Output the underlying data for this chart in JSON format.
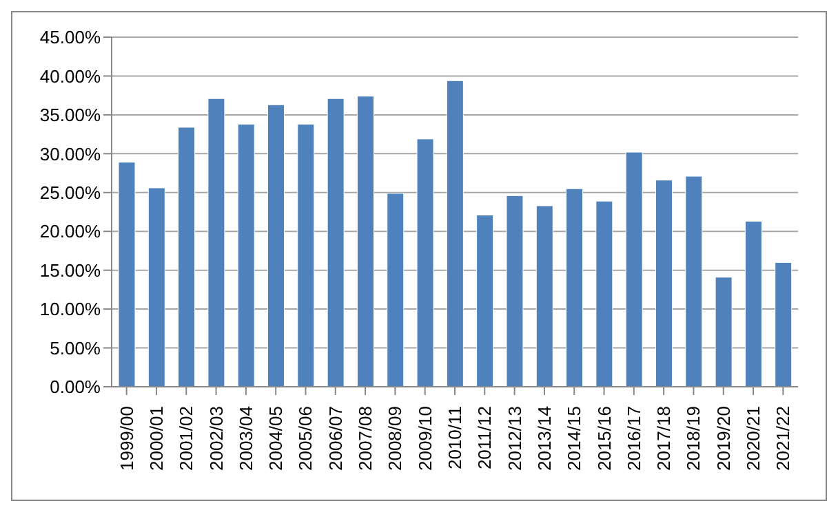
{
  "chart_data": {
    "type": "bar",
    "categories": [
      "1999/00",
      "2000/01",
      "2001/02",
      "2002/03",
      "2003/04",
      "2004/05",
      "2005/06",
      "2006/07",
      "2007/08",
      "2008/09",
      "2009/10",
      "2010/11",
      "2011/12",
      "2012/13",
      "2013/14",
      "2014/15",
      "2015/16",
      "2016/17",
      "2017/18",
      "2018/19",
      "2019/20",
      "2020/21",
      "2021/22"
    ],
    "values": [
      28.9,
      25.6,
      33.4,
      37.1,
      33.8,
      36.3,
      33.8,
      37.1,
      37.4,
      24.9,
      31.9,
      39.4,
      22.1,
      24.6,
      23.3,
      25.5,
      23.9,
      30.2,
      26.6,
      27.1,
      14.1,
      21.3,
      16.0
    ],
    "color": "#4f81bd",
    "ylim": [
      0,
      45
    ],
    "yticks": [
      {
        "value": 0,
        "label": "0.00%"
      },
      {
        "value": 5,
        "label": "5.00%"
      },
      {
        "value": 10,
        "label": "10.00%"
      },
      {
        "value": 15,
        "label": "15.00%"
      },
      {
        "value": 20,
        "label": "20.00%"
      },
      {
        "value": 25,
        "label": "25.00%"
      },
      {
        "value": 30,
        "label": "30.00%"
      },
      {
        "value": 35,
        "label": "35.00%"
      },
      {
        "value": 40,
        "label": "40.00%"
      },
      {
        "value": 45,
        "label": "45.00%"
      }
    ],
    "grid": "y",
    "legend": false
  }
}
